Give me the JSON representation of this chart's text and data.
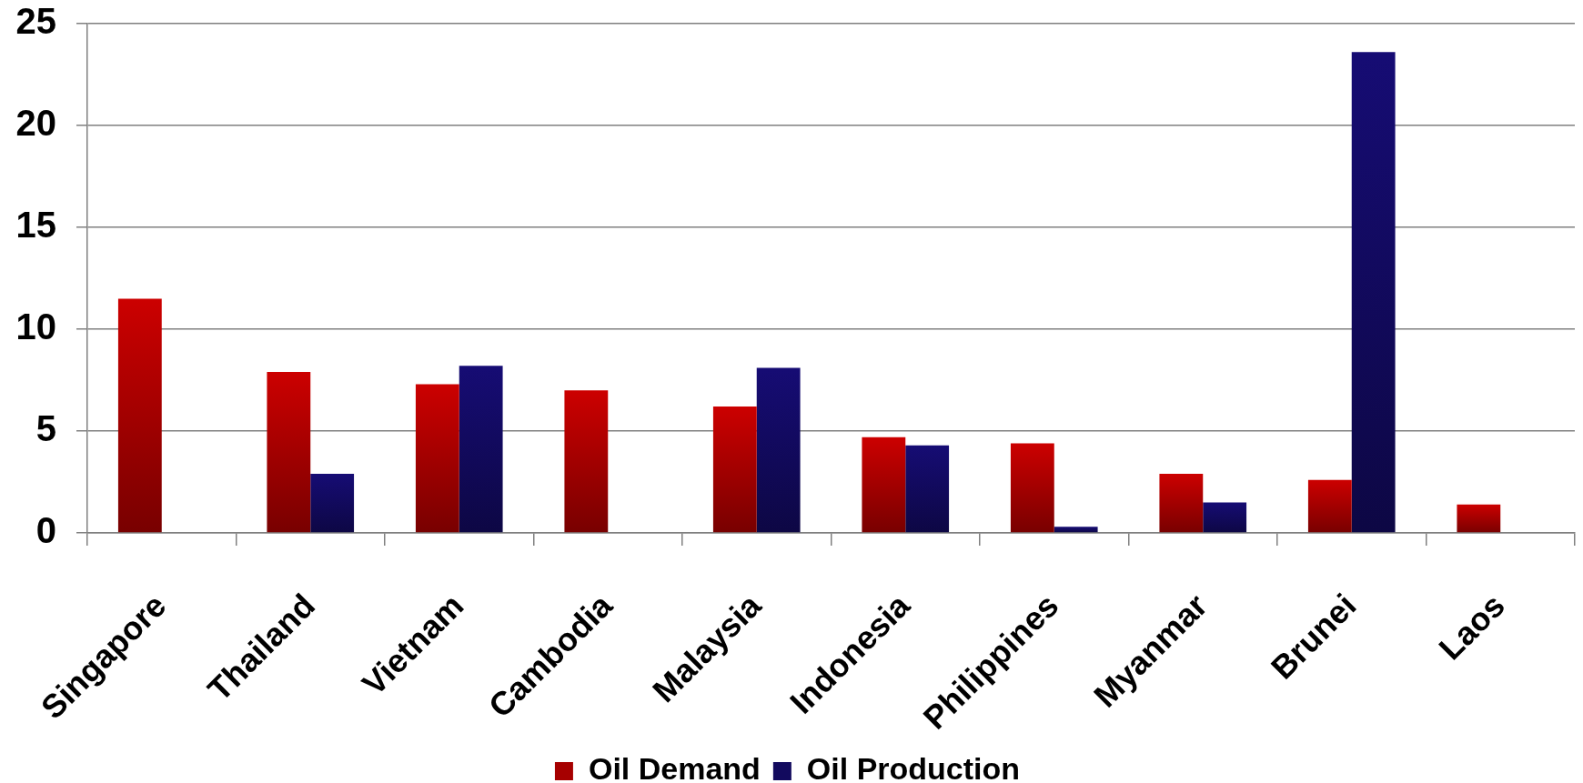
{
  "chart_data": {
    "type": "bar",
    "categories": [
      "Singapore",
      "Thailand",
      "Vietnam",
      "Cambodia",
      "Malaysia",
      "Indonesia",
      "Philippines",
      "Myanmar",
      "Brunei",
      "Laos"
    ],
    "series": [
      {
        "name": "Oil Demand",
        "color": "#a60000",
        "values": [
          11.5,
          7.9,
          7.3,
          7.0,
          6.2,
          4.7,
          4.4,
          2.9,
          2.6,
          1.4
        ]
      },
      {
        "name": "Oil Production",
        "color": "#120a5e",
        "values": [
          null,
          2.9,
          8.2,
          null,
          8.1,
          4.3,
          0.3,
          1.5,
          23.6,
          null
        ]
      }
    ],
    "ylim": [
      0,
      25
    ],
    "yticks": [
      0,
      5,
      10,
      15,
      20,
      25
    ],
    "grid": "y",
    "legend": "bottom"
  }
}
